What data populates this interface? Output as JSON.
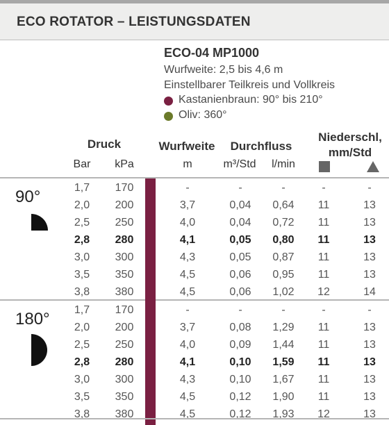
{
  "header": {
    "title": "ECO ROTATOR – LEISTUNGSDATEN"
  },
  "product": {
    "model": "ECO-04 MP1000",
    "throw": "Wurfweite: 2,5 bis 4,6 m",
    "arc": "Einstellbarer Teilkreis und Vollkreis",
    "colors": [
      {
        "label": "Kastanienbraun: 90° bis 210°",
        "color": "#7a2042"
      },
      {
        "label": "Oliv: 360°",
        "color": "#6b7a2a"
      }
    ]
  },
  "columns": {
    "druck": "Druck",
    "bar": "Bar",
    "kpa": "kPa",
    "wurfweite": "Wurfweite",
    "wurfweite_unit": "m",
    "durchfluss": "Durchfluss",
    "m3": "m³/Std",
    "lmin": "l/min",
    "niederschl_1": "Niederschl,",
    "niederschl_2": "mm/Std",
    "square_icon": "square-icon",
    "triangle_icon": "triangle-icon"
  },
  "sections": [
    {
      "angle": "90°",
      "sector_icon": "quarter-circle-icon",
      "rows": [
        {
          "bold": false,
          "cells": [
            "1,7",
            "170",
            "-",
            "-",
            "-",
            "-",
            "-"
          ]
        },
        {
          "bold": false,
          "cells": [
            "2,0",
            "200",
            "3,7",
            "0,04",
            "0,64",
            "11",
            "13"
          ]
        },
        {
          "bold": false,
          "cells": [
            "2,5",
            "250",
            "4,0",
            "0,04",
            "0,72",
            "11",
            "13"
          ]
        },
        {
          "bold": true,
          "cells": [
            "2,8",
            "280",
            "4,1",
            "0,05",
            "0,80",
            "11",
            "13"
          ]
        },
        {
          "bold": false,
          "cells": [
            "3,0",
            "300",
            "4,3",
            "0,05",
            "0,87",
            "11",
            "13"
          ]
        },
        {
          "bold": false,
          "cells": [
            "3,5",
            "350",
            "4,5",
            "0,06",
            "0,95",
            "11",
            "13"
          ]
        },
        {
          "bold": false,
          "cells": [
            "3,8",
            "380",
            "4,5",
            "0,06",
            "1,02",
            "12",
            "14"
          ]
        }
      ]
    },
    {
      "angle": "180°",
      "sector_icon": "half-circle-icon",
      "rows": [
        {
          "bold": false,
          "cells": [
            "1,7",
            "170",
            "-",
            "-",
            "-",
            "-",
            "-"
          ]
        },
        {
          "bold": false,
          "cells": [
            "2,0",
            "200",
            "3,7",
            "0,08",
            "1,29",
            "11",
            "13"
          ]
        },
        {
          "bold": false,
          "cells": [
            "2,5",
            "250",
            "4,0",
            "0,09",
            "1,44",
            "11",
            "13"
          ]
        },
        {
          "bold": true,
          "cells": [
            "2,8",
            "280",
            "4,1",
            "0,10",
            "1,59",
            "11",
            "13"
          ]
        },
        {
          "bold": false,
          "cells": [
            "3,0",
            "300",
            "4,3",
            "0,10",
            "1,67",
            "11",
            "13"
          ]
        },
        {
          "bold": false,
          "cells": [
            "3,5",
            "350",
            "4,5",
            "0,12",
            "1,90",
            "11",
            "13"
          ]
        },
        {
          "bold": false,
          "cells": [
            "3,8",
            "380",
            "4,5",
            "0,12",
            "1,93",
            "12",
            "13"
          ]
        }
      ]
    }
  ]
}
